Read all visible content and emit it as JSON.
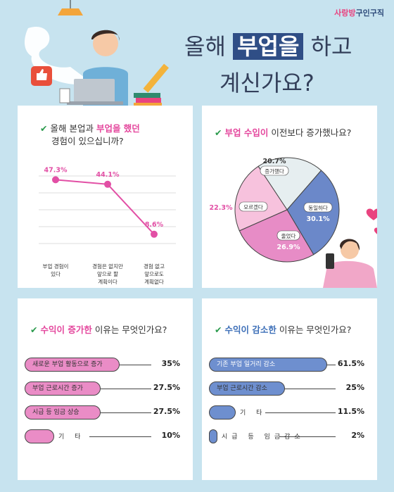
{
  "brand": {
    "part1": "사랑방",
    "part2": "구인구직"
  },
  "headline": {
    "pre": "올해 ",
    "highlight": "부업을",
    "post": " 하고",
    "line2": "계신가요?"
  },
  "q1": {
    "pre": "올해 본업과 ",
    "accent": "부업을 했던",
    "line2": "경험이 있으십니까?"
  },
  "q2": {
    "accent": "부업 수입이",
    "post": " 이전보다 증가했나요?"
  },
  "q3": {
    "accent": "수익이 증가한",
    "post": " 이유는 무엇인가요?"
  },
  "q4": {
    "accent": "수익이 감소한",
    "post": " 이유는 무엇인가요?"
  },
  "colors": {
    "pink": "#e4479d",
    "blue": "#3d6fb8",
    "check": "#2a9a4c",
    "navy": "#2f4e86"
  },
  "chart_data": [
    {
      "type": "line",
      "categories": [
        "부업 경험이 있다",
        "경험은 없지만 앞으로 할 계획이다",
        "경험 없고 앞으로도 계획없다"
      ],
      "values": [
        47.3,
        44.1,
        8.6
      ],
      "value_labels": [
        "47.3%",
        "44.1%",
        "8.6%"
      ],
      "tick_lines": [
        [
          "부업 경험이",
          "있다"
        ],
        [
          "경험은 없지만",
          "앞으로 할",
          "계획이다"
        ],
        [
          "경험 없고",
          "앞으로도",
          "계획없다"
        ]
      ],
      "grid": true
    },
    {
      "type": "pie",
      "slices": [
        {
          "label": "증가했다",
          "value": 20.7,
          "text": "20.7%",
          "color": "#e6eef0"
        },
        {
          "label": "동일하다",
          "value": 30.1,
          "text": "30.1%",
          "color": "#6b88c9"
        },
        {
          "label": "줄었다",
          "value": 26.9,
          "text": "26.9%",
          "color": "#e78cc6"
        },
        {
          "label": "모르겠다",
          "value": 22.3,
          "text": "22.3%",
          "color": "#f7c2dd"
        }
      ]
    },
    {
      "type": "bar",
      "orientation": "horizontal",
      "categories": [
        "새로운 부업 활동으로 증가",
        "부업 근로시간 증가",
        "시급 등 임금 상승",
        "기 타"
      ],
      "values": [
        35,
        27.5,
        27.5,
        10
      ],
      "value_labels": [
        "35%",
        "27.5%",
        "27.5%",
        "10%"
      ],
      "color": "#ea8cc6"
    },
    {
      "type": "bar",
      "orientation": "horizontal",
      "categories": [
        "기존 부업 일거리 감소",
        "부업 근로시간 감소",
        "기 타",
        "시급 등 임금감소"
      ],
      "values": [
        61.5,
        25,
        11.5,
        2
      ],
      "value_labels": [
        "61.5%",
        "25%",
        "11.5%",
        "2%"
      ],
      "color": "#6e8fcf"
    }
  ]
}
